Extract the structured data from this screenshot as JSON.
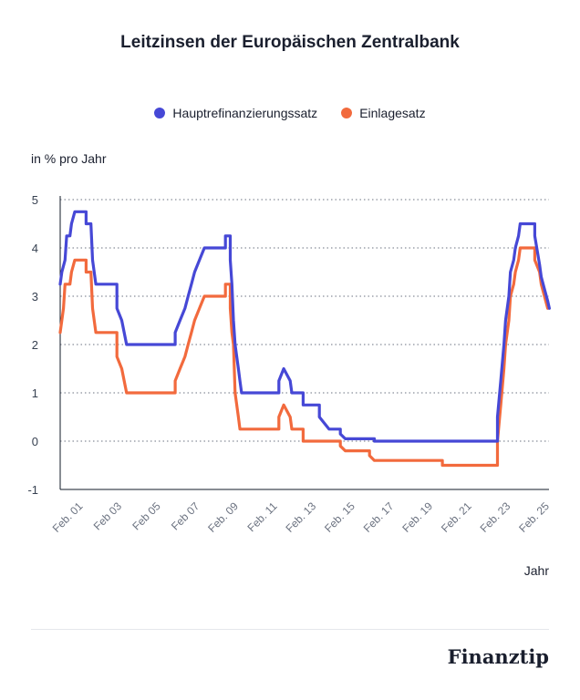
{
  "chart_data": {
    "type": "line",
    "title": "Leitzinsen der Europäischen Zentralbank",
    "ylabel": "in % pro Jahr",
    "xlabel": "Jahr",
    "ylim": [
      -1,
      5
    ],
    "yticks": [
      "5",
      "4",
      "3",
      "2",
      "1",
      "0",
      "-1"
    ],
    "xticks": [
      "Feb. 01",
      "Feb 03",
      "Feb 05",
      "Feb 07",
      "Feb. 09",
      "Feb. 11",
      "Feb. 13",
      "Feb. 15",
      "Feb. 17",
      "Feb. 19",
      "Feb. 21",
      "Feb. 23",
      "Feb. 25"
    ],
    "xtick_years": [
      2001,
      2003,
      2005,
      2007,
      2009,
      2011,
      2013,
      2015,
      2017,
      2019,
      2021,
      2023,
      2025
    ],
    "xlim_years": [
      2000.0,
      2025.15
    ],
    "grid": true,
    "legend_position": "top",
    "series": [
      {
        "name": "Hauptrefinanzierungssatz",
        "color": "#4648d6",
        "points": [
          [
            "2000-01",
            3.25
          ],
          [
            "2000-02",
            3.5
          ],
          [
            "2000-04",
            3.75
          ],
          [
            "2000-05",
            4.25
          ],
          [
            "2000-07",
            4.25
          ],
          [
            "2000-08",
            4.5
          ],
          [
            "2000-10",
            4.75
          ],
          [
            "2001-05",
            4.75
          ],
          [
            "2001-05",
            4.5
          ],
          [
            "2001-08",
            4.5
          ],
          [
            "2001-09",
            3.75
          ],
          [
            "2001-11",
            3.25
          ],
          [
            "2002-12",
            3.25
          ],
          [
            "2002-12",
            2.75
          ],
          [
            "2003-03",
            2.5
          ],
          [
            "2003-06",
            2.0
          ],
          [
            "2005-12",
            2.0
          ],
          [
            "2005-12",
            2.25
          ],
          [
            "2006-03",
            2.5
          ],
          [
            "2006-06",
            2.75
          ],
          [
            "2006-08",
            3.0
          ],
          [
            "2006-10",
            3.25
          ],
          [
            "2006-12",
            3.5
          ],
          [
            "2007-03",
            3.75
          ],
          [
            "2007-06",
            4.0
          ],
          [
            "2008-07",
            4.0
          ],
          [
            "2008-07",
            4.25
          ],
          [
            "2008-10",
            4.25
          ],
          [
            "2008-10",
            3.75
          ],
          [
            "2008-11",
            3.25
          ],
          [
            "2008-12",
            2.5
          ],
          [
            "2009-01",
            2.0
          ],
          [
            "2009-03",
            1.5
          ],
          [
            "2009-04",
            1.25
          ],
          [
            "2009-05",
            1.0
          ],
          [
            "2011-04",
            1.0
          ],
          [
            "2011-04",
            1.25
          ],
          [
            "2011-07",
            1.5
          ],
          [
            "2011-11",
            1.25
          ],
          [
            "2011-12",
            1.0
          ],
          [
            "2012-07",
            1.0
          ],
          [
            "2012-07",
            0.75
          ],
          [
            "2013-05",
            0.75
          ],
          [
            "2013-05",
            0.5
          ],
          [
            "2013-11",
            0.25
          ],
          [
            "2014-06",
            0.25
          ],
          [
            "2014-06",
            0.15
          ],
          [
            "2014-09",
            0.05
          ],
          [
            "2016-03",
            0.05
          ],
          [
            "2016-03",
            0.0
          ],
          [
            "2022-07",
            0.0
          ],
          [
            "2022-07",
            0.5
          ],
          [
            "2022-09",
            1.25
          ],
          [
            "2022-11",
            2.0
          ],
          [
            "2022-12",
            2.5
          ],
          [
            "2023-02",
            3.0
          ],
          [
            "2023-03",
            3.5
          ],
          [
            "2023-05",
            3.75
          ],
          [
            "2023-06",
            4.0
          ],
          [
            "2023-08",
            4.25
          ],
          [
            "2023-09",
            4.5
          ],
          [
            "2024-06",
            4.5
          ],
          [
            "2024-06",
            4.25
          ],
          [
            "2024-09",
            3.65
          ],
          [
            "2024-10",
            3.4
          ],
          [
            "2024-12",
            3.15
          ],
          [
            "2025-02",
            2.9
          ],
          [
            "2025-03",
            2.75
          ]
        ]
      },
      {
        "name": "Einlagesatz",
        "color": "#f26a3d",
        "points": [
          [
            "2000-01",
            2.25
          ],
          [
            "2000-02",
            2.5
          ],
          [
            "2000-03",
            2.75
          ],
          [
            "2000-04",
            3.25
          ],
          [
            "2000-07",
            3.25
          ],
          [
            "2000-08",
            3.5
          ],
          [
            "2000-10",
            3.75
          ],
          [
            "2001-05",
            3.75
          ],
          [
            "2001-05",
            3.5
          ],
          [
            "2001-08",
            3.5
          ],
          [
            "2001-09",
            2.75
          ],
          [
            "2001-11",
            2.25
          ],
          [
            "2002-12",
            2.25
          ],
          [
            "2002-12",
            1.75
          ],
          [
            "2003-03",
            1.5
          ],
          [
            "2003-06",
            1.0
          ],
          [
            "2005-12",
            1.0
          ],
          [
            "2005-12",
            1.25
          ],
          [
            "2006-03",
            1.5
          ],
          [
            "2006-06",
            1.75
          ],
          [
            "2006-08",
            2.0
          ],
          [
            "2006-10",
            2.25
          ],
          [
            "2006-12",
            2.5
          ],
          [
            "2007-03",
            2.75
          ],
          [
            "2007-06",
            3.0
          ],
          [
            "2008-07",
            3.0
          ],
          [
            "2008-07",
            3.25
          ],
          [
            "2008-10",
            3.25
          ],
          [
            "2008-10",
            2.75
          ],
          [
            "2008-11",
            2.25
          ],
          [
            "2008-12",
            2.0
          ],
          [
            "2009-01",
            1.0
          ],
          [
            "2009-03",
            0.5
          ],
          [
            "2009-04",
            0.25
          ],
          [
            "2011-04",
            0.25
          ],
          [
            "2011-04",
            0.5
          ],
          [
            "2011-07",
            0.75
          ],
          [
            "2011-11",
            0.5
          ],
          [
            "2011-12",
            0.25
          ],
          [
            "2012-07",
            0.25
          ],
          [
            "2012-07",
            0.0
          ],
          [
            "2014-06",
            0.0
          ],
          [
            "2014-06",
            -0.1
          ],
          [
            "2014-09",
            -0.2
          ],
          [
            "2015-12",
            -0.2
          ],
          [
            "2015-12",
            -0.3
          ],
          [
            "2016-03",
            -0.4
          ],
          [
            "2019-09",
            -0.4
          ],
          [
            "2019-09",
            -0.5
          ],
          [
            "2022-07",
            -0.5
          ],
          [
            "2022-07",
            0.0
          ],
          [
            "2022-09",
            0.75
          ],
          [
            "2022-11",
            1.5
          ],
          [
            "2022-12",
            2.0
          ],
          [
            "2023-02",
            2.5
          ],
          [
            "2023-03",
            3.0
          ],
          [
            "2023-05",
            3.25
          ],
          [
            "2023-06",
            3.5
          ],
          [
            "2023-08",
            3.75
          ],
          [
            "2023-09",
            4.0
          ],
          [
            "2024-06",
            4.0
          ],
          [
            "2024-06",
            3.75
          ],
          [
            "2024-09",
            3.5
          ],
          [
            "2024-10",
            3.25
          ],
          [
            "2024-12",
            3.0
          ],
          [
            "2025-02",
            2.75
          ]
        ]
      }
    ]
  },
  "brand": "Finanztip"
}
